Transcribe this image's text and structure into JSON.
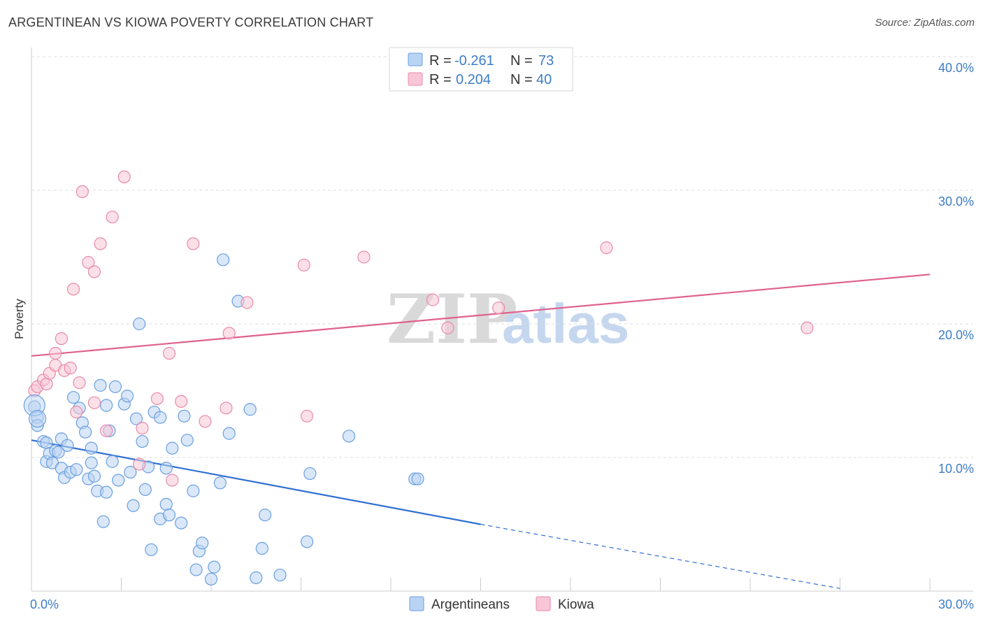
{
  "title": "ARGENTINEAN VS KIOWA POVERTY CORRELATION CHART",
  "source": "Source: ZipAtlas.com",
  "watermark": {
    "zip": "ZIP",
    "atlas": "atlas"
  },
  "legend": {
    "rows": [
      {
        "r_label": "R = ",
        "r_value": "-0.261",
        "n_label": "N = ",
        "n_value": "73"
      },
      {
        "r_label": "R = ",
        "r_value": "0.204",
        "n_label": "N = ",
        "n_value": "40"
      }
    ]
  },
  "colors": {
    "argentineans_fill": "#b9d3f2",
    "argentineans_stroke": "#6a9fe0",
    "argentineans_line": "#2f6fd0",
    "kiowa_fill": "#f8c6d6",
    "kiowa_stroke": "#e88aaa",
    "kiowa_line": "#e0608e",
    "grid": "#dcdcdc",
    "axis": "#cccccc"
  },
  "chart_data": {
    "type": "scatter",
    "title": "ARGENTINEAN VS KIOWA POVERTY CORRELATION CHART",
    "xlabel": "",
    "ylabel": "Poverty",
    "xlim": [
      0,
      30
    ],
    "ylim": [
      0,
      40
    ],
    "x_tick_labels": [
      "0.0%",
      "30.0%"
    ],
    "y_tick_values": [
      10,
      20,
      30,
      40
    ],
    "y_tick_labels": [
      "10.0%",
      "20.0%",
      "30.0%",
      "40.0%"
    ],
    "grid": "horizontal dashed",
    "legend_position": "top-center",
    "series": [
      {
        "name": "Argentineans",
        "r": -0.261,
        "n": 73,
        "trend_line": {
          "x0": 0,
          "y0": 11.3,
          "x1": 15,
          "y1": 5.0,
          "dashed_to_x": 27,
          "dashed_to_y": 0.2
        },
        "points": [
          [
            0.1,
            13.8
          ],
          [
            0.2,
            13.0
          ],
          [
            0.2,
            12.4
          ],
          [
            0.4,
            11.2
          ],
          [
            0.5,
            11.1
          ],
          [
            0.5,
            9.7
          ],
          [
            0.6,
            10.3
          ],
          [
            0.7,
            9.6
          ],
          [
            0.8,
            10.5
          ],
          [
            0.9,
            10.4
          ],
          [
            1.0,
            9.2
          ],
          [
            1.0,
            11.4
          ],
          [
            1.1,
            8.5
          ],
          [
            1.2,
            10.9
          ],
          [
            1.3,
            8.9
          ],
          [
            1.4,
            14.5
          ],
          [
            1.5,
            9.1
          ],
          [
            1.6,
            13.7
          ],
          [
            1.7,
            12.6
          ],
          [
            1.8,
            11.9
          ],
          [
            1.9,
            8.4
          ],
          [
            2.0,
            9.6
          ],
          [
            2.0,
            10.7
          ],
          [
            2.1,
            8.6
          ],
          [
            2.2,
            7.5
          ],
          [
            2.3,
            15.4
          ],
          [
            2.4,
            5.2
          ],
          [
            2.5,
            7.4
          ],
          [
            2.5,
            13.9
          ],
          [
            2.6,
            12.0
          ],
          [
            2.7,
            9.7
          ],
          [
            2.8,
            15.3
          ],
          [
            2.9,
            8.3
          ],
          [
            3.1,
            14.0
          ],
          [
            3.2,
            14.6
          ],
          [
            3.3,
            8.9
          ],
          [
            3.4,
            6.4
          ],
          [
            3.5,
            12.9
          ],
          [
            3.6,
            20.0
          ],
          [
            3.7,
            11.2
          ],
          [
            3.8,
            7.6
          ],
          [
            3.9,
            9.3
          ],
          [
            4.0,
            3.1
          ],
          [
            4.1,
            13.4
          ],
          [
            4.3,
            13.0
          ],
          [
            4.3,
            5.4
          ],
          [
            4.5,
            9.2
          ],
          [
            4.5,
            6.5
          ],
          [
            4.6,
            5.7
          ],
          [
            4.7,
            10.7
          ],
          [
            5.0,
            5.1
          ],
          [
            5.1,
            13.1
          ],
          [
            5.2,
            11.3
          ],
          [
            5.4,
            7.5
          ],
          [
            5.5,
            1.6
          ],
          [
            5.6,
            3.0
          ],
          [
            5.7,
            3.6
          ],
          [
            6.0,
            0.9
          ],
          [
            6.1,
            1.8
          ],
          [
            6.3,
            8.1
          ],
          [
            6.4,
            24.8
          ],
          [
            6.6,
            11.8
          ],
          [
            6.9,
            21.7
          ],
          [
            7.3,
            13.6
          ],
          [
            7.5,
            1.0
          ],
          [
            7.7,
            3.2
          ],
          [
            7.8,
            5.7
          ],
          [
            8.3,
            1.2
          ],
          [
            9.2,
            3.7
          ],
          [
            9.3,
            8.8
          ],
          [
            10.6,
            11.6
          ],
          [
            12.8,
            8.4
          ],
          [
            12.9,
            8.4
          ]
        ]
      },
      {
        "name": "Kiowa",
        "r": 0.204,
        "n": 40,
        "trend_line": {
          "x0": 0,
          "y0": 17.6,
          "x1": 30,
          "y1": 23.7
        },
        "points": [
          [
            0.1,
            15.0
          ],
          [
            0.2,
            15.3
          ],
          [
            0.4,
            15.8
          ],
          [
            0.5,
            15.5
          ],
          [
            0.6,
            16.3
          ],
          [
            0.8,
            17.8
          ],
          [
            0.8,
            16.9
          ],
          [
            1.0,
            18.9
          ],
          [
            1.1,
            16.5
          ],
          [
            1.3,
            16.7
          ],
          [
            1.4,
            22.6
          ],
          [
            1.5,
            13.4
          ],
          [
            1.6,
            15.6
          ],
          [
            1.7,
            29.9
          ],
          [
            1.9,
            24.6
          ],
          [
            2.1,
            23.9
          ],
          [
            2.1,
            14.1
          ],
          [
            2.3,
            26.0
          ],
          [
            2.5,
            12.0
          ],
          [
            2.7,
            28.0
          ],
          [
            3.1,
            31.0
          ],
          [
            3.6,
            9.5
          ],
          [
            3.7,
            12.2
          ],
          [
            4.2,
            14.4
          ],
          [
            4.6,
            17.8
          ],
          [
            4.7,
            8.3
          ],
          [
            5.0,
            14.2
          ],
          [
            5.4,
            26.0
          ],
          [
            5.8,
            12.7
          ],
          [
            6.5,
            13.7
          ],
          [
            6.6,
            19.3
          ],
          [
            7.2,
            21.6
          ],
          [
            9.1,
            24.4
          ],
          [
            9.2,
            13.1
          ],
          [
            11.1,
            25.0
          ],
          [
            13.4,
            21.8
          ],
          [
            13.9,
            19.7
          ],
          [
            15.6,
            21.2
          ],
          [
            19.2,
            25.7
          ],
          [
            25.9,
            19.7
          ]
        ]
      }
    ]
  },
  "bottom_legend": [
    "Argentineans",
    "Kiowa"
  ]
}
